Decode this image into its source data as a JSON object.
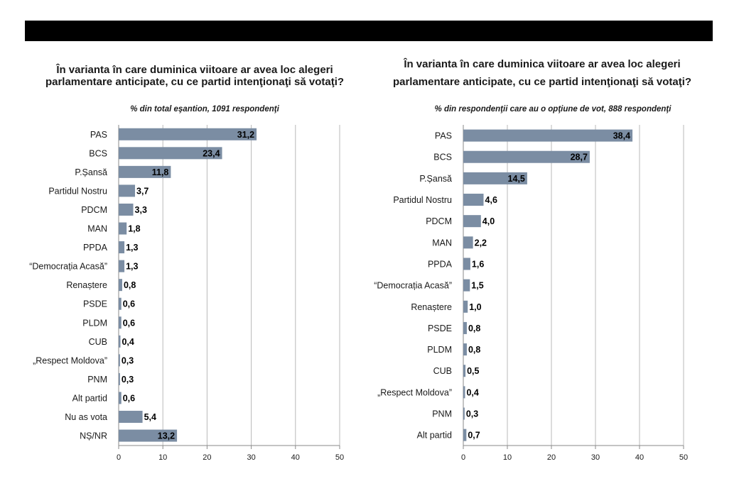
{
  "chart_data": [
    {
      "type": "bar",
      "orientation": "horizontal",
      "title": [
        "În varianta în care duminica viitoare ar avea loc alegeri",
        "parlamentare anticipate, cu ce partid intenţionaţi să votaţi?"
      ],
      "subtitle": "% din total eşantion, 1091 respondenţi",
      "categories": [
        "PAS",
        "BCS",
        "P.Șansă",
        "Partidul Nostru",
        "PDCM",
        "MAN",
        "PPDA",
        "“Democrația Acasă”",
        "Renaștere",
        "PSDE",
        "PLDM",
        "CUB",
        "„Respect Moldova”",
        "PNM",
        "Alt partid",
        "Nu as vota",
        "NȘ/NR"
      ],
      "values": [
        31.2,
        23.4,
        11.8,
        3.7,
        3.3,
        1.8,
        1.3,
        1.3,
        0.8,
        0.6,
        0.6,
        0.4,
        0.3,
        0.3,
        0.6,
        5.4,
        13.2
      ],
      "value_labels": [
        "31,2",
        "23,4",
        "11,8",
        "3,7",
        "3,3",
        "1,8",
        "1,3",
        "1,3",
        "0,8",
        "0,6",
        "0,6",
        "0,4",
        "0,3",
        "0,3",
        "0,6",
        "5,4",
        "13,2"
      ],
      "xlim": [
        0,
        50
      ],
      "xticks": [
        0,
        10,
        20,
        30,
        40,
        50
      ],
      "grid": "vertical",
      "bar_color": "#7b8da3"
    },
    {
      "type": "bar",
      "orientation": "horizontal",
      "title": [
        "În varianta în care duminica viitoare ar avea loc alegeri",
        "parlamentare anticipate, cu ce partid intenţionaţi să votaţi?"
      ],
      "subtitle": "% din respondenţii care au o opţiune de vot, 888 respondenţi",
      "categories": [
        "PAS",
        "BCS",
        "P.Șansă",
        "Partidul Nostru",
        "PDCM",
        "MAN",
        "PPDA",
        "“Democrația Acasă”",
        "Renaștere",
        "PSDE",
        "PLDM",
        "CUB",
        "„Respect Moldova”",
        "PNM",
        "Alt partid"
      ],
      "values": [
        38.4,
        28.7,
        14.5,
        4.6,
        4.0,
        2.2,
        1.6,
        1.5,
        1.0,
        0.8,
        0.8,
        0.5,
        0.4,
        0.3,
        0.7
      ],
      "value_labels": [
        "38,4",
        "28,7",
        "14,5",
        "4,6",
        "4,0",
        "2,2",
        "1,6",
        "1,5",
        "1,0",
        "0,8",
        "0,8",
        "0,5",
        "0,4",
        "0,3",
        "0,7"
      ],
      "xlim": [
        0,
        50
      ],
      "xticks": [
        0,
        10,
        20,
        30,
        40,
        50
      ],
      "grid": "vertical",
      "bar_color": "#7b8da3"
    }
  ]
}
